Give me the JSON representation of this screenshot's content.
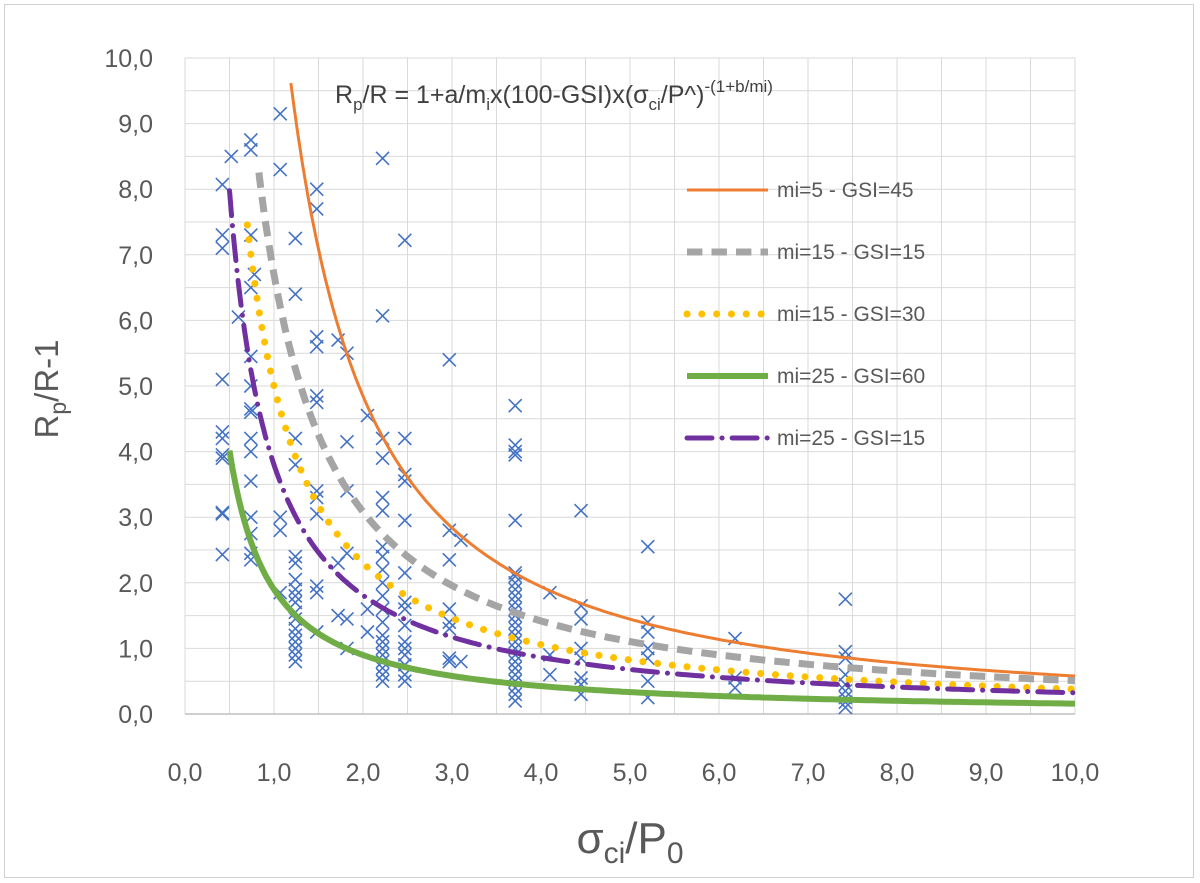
{
  "chart_data": {
    "type": "scatter",
    "xlim": [
      0,
      10
    ],
    "ylim": [
      0,
      10
    ],
    "x_ticks": [
      "0,0",
      "1,0",
      "2,0",
      "3,0",
      "4,0",
      "5,0",
      "6,0",
      "7,0",
      "8,0",
      "9,0",
      "10,0"
    ],
    "y_ticks": [
      "0,0",
      "1,0",
      "2,0",
      "3,0",
      "4,0",
      "5,0",
      "6,0",
      "7,0",
      "8,0",
      "9,0",
      "10,0"
    ],
    "grid": true,
    "legend_position": "right-upper-inside",
    "formula": {
      "a": "R",
      "a_sub": "p",
      "b": "/R = 1+a/m",
      "b_sub": "i",
      "c": "x(100-GSI)x(σ",
      "c_sub": "ci",
      "d": "/P^)",
      "sup": "-(1+b/mi)"
    },
    "ylabel": {
      "a": "R",
      "sub": "p",
      "b": "/R-1"
    },
    "xlabel": {
      "a": "σ",
      "sub1": "ci",
      "b": "/P",
      "sub2": "0"
    },
    "scatter": {
      "marker": "x",
      "color": "#4472C4",
      "points": [
        [
          0.42,
          8.07
        ],
        [
          0.42,
          7.3
        ],
        [
          0.42,
          7.1
        ],
        [
          0.42,
          5.1
        ],
        [
          0.42,
          4.3
        ],
        [
          0.42,
          4.2
        ],
        [
          0.42,
          3.95
        ],
        [
          0.42,
          3.9
        ],
        [
          0.42,
          3.07
        ],
        [
          0.42,
          3.05
        ],
        [
          0.42,
          2.43
        ],
        [
          0.52,
          8.5
        ],
        [
          0.6,
          6.05
        ],
        [
          0.74,
          8.75
        ],
        [
          0.74,
          8.6
        ],
        [
          0.74,
          7.3
        ],
        [
          0.74,
          6.5
        ],
        [
          0.74,
          5.45
        ],
        [
          0.74,
          5.0
        ],
        [
          0.74,
          4.65
        ],
        [
          0.74,
          4.6
        ],
        [
          0.74,
          4.2
        ],
        [
          0.74,
          4.0
        ],
        [
          0.74,
          3.55
        ],
        [
          0.74,
          3.0
        ],
        [
          0.74,
          2.75
        ],
        [
          0.74,
          2.45
        ],
        [
          0.74,
          2.35
        ],
        [
          0.78,
          6.7
        ],
        [
          1.07,
          9.15
        ],
        [
          1.07,
          8.3
        ],
        [
          1.07,
          3.0
        ],
        [
          1.07,
          2.8
        ],
        [
          1.07,
          1.85
        ],
        [
          1.24,
          7.25
        ],
        [
          1.24,
          6.4
        ],
        [
          1.24,
          4.2
        ],
        [
          1.24,
          3.8
        ],
        [
          1.24,
          2.4
        ],
        [
          1.24,
          2.3
        ],
        [
          1.24,
          2.05
        ],
        [
          1.24,
          1.9
        ],
        [
          1.24,
          1.8
        ],
        [
          1.24,
          1.7
        ],
        [
          1.24,
          1.55
        ],
        [
          1.24,
          1.45
        ],
        [
          1.24,
          1.3
        ],
        [
          1.24,
          1.2
        ],
        [
          1.24,
          1.1
        ],
        [
          1.24,
          1.0
        ],
        [
          1.24,
          0.9
        ],
        [
          1.24,
          0.8
        ],
        [
          1.48,
          8.0
        ],
        [
          1.48,
          7.7
        ],
        [
          1.48,
          5.75
        ],
        [
          1.48,
          5.6
        ],
        [
          1.48,
          4.85
        ],
        [
          1.48,
          4.75
        ],
        [
          1.48,
          3.4
        ],
        [
          1.48,
          3.3
        ],
        [
          1.48,
          3.05
        ],
        [
          1.48,
          1.95
        ],
        [
          1.48,
          1.85
        ],
        [
          1.48,
          1.25
        ],
        [
          1.72,
          5.7
        ],
        [
          1.72,
          2.3
        ],
        [
          1.72,
          1.5
        ],
        [
          1.82,
          5.5
        ],
        [
          1.82,
          4.15
        ],
        [
          1.82,
          3.4
        ],
        [
          1.82,
          2.45
        ],
        [
          1.82,
          1.45
        ],
        [
          1.82,
          1.0
        ],
        [
          2.05,
          4.55
        ],
        [
          2.05,
          1.6
        ],
        [
          2.05,
          1.25
        ],
        [
          2.22,
          8.47
        ],
        [
          2.22,
          6.07
        ],
        [
          2.22,
          4.2
        ],
        [
          2.22,
          3.9
        ],
        [
          2.22,
          3.3
        ],
        [
          2.22,
          3.1
        ],
        [
          2.22,
          2.55
        ],
        [
          2.22,
          2.4
        ],
        [
          2.22,
          2.2
        ],
        [
          2.22,
          2.0
        ],
        [
          2.22,
          1.8
        ],
        [
          2.22,
          1.6
        ],
        [
          2.22,
          1.4
        ],
        [
          2.22,
          1.2
        ],
        [
          2.22,
          1.1
        ],
        [
          2.22,
          1.0
        ],
        [
          2.22,
          0.9
        ],
        [
          2.22,
          0.8
        ],
        [
          2.22,
          0.7
        ],
        [
          2.22,
          0.6
        ],
        [
          2.22,
          0.5
        ],
        [
          2.47,
          7.22
        ],
        [
          2.47,
          4.2
        ],
        [
          2.47,
          3.65
        ],
        [
          2.47,
          3.55
        ],
        [
          2.47,
          2.95
        ],
        [
          2.47,
          2.15
        ],
        [
          2.47,
          1.7
        ],
        [
          2.47,
          1.6
        ],
        [
          2.47,
          1.35
        ],
        [
          2.47,
          1.1
        ],
        [
          2.47,
          1.0
        ],
        [
          2.47,
          0.9
        ],
        [
          2.47,
          0.75
        ],
        [
          2.47,
          0.6
        ],
        [
          2.47,
          0.5
        ],
        [
          2.97,
          5.4
        ],
        [
          2.97,
          2.8
        ],
        [
          2.97,
          2.35
        ],
        [
          2.97,
          1.6
        ],
        [
          2.97,
          1.4
        ],
        [
          2.97,
          1.3
        ],
        [
          2.97,
          0.85
        ],
        [
          2.97,
          0.8
        ],
        [
          3.1,
          2.65
        ],
        [
          3.1,
          0.8
        ],
        [
          3.71,
          4.7
        ],
        [
          3.71,
          4.1
        ],
        [
          3.71,
          4.0
        ],
        [
          3.71,
          3.95
        ],
        [
          3.71,
          2.95
        ],
        [
          3.71,
          2.15
        ],
        [
          3.71,
          2.1
        ],
        [
          3.71,
          2.0
        ],
        [
          3.71,
          1.9
        ],
        [
          3.71,
          1.8
        ],
        [
          3.71,
          1.7
        ],
        [
          3.71,
          1.6
        ],
        [
          3.71,
          1.5
        ],
        [
          3.71,
          1.4
        ],
        [
          3.71,
          1.3
        ],
        [
          3.71,
          1.2
        ],
        [
          3.71,
          1.1
        ],
        [
          3.71,
          1.0
        ],
        [
          3.71,
          0.9
        ],
        [
          3.71,
          0.8
        ],
        [
          3.71,
          0.7
        ],
        [
          3.71,
          0.6
        ],
        [
          3.71,
          0.5
        ],
        [
          3.71,
          0.4
        ],
        [
          3.71,
          0.3
        ],
        [
          3.71,
          0.2
        ],
        [
          4.1,
          1.85
        ],
        [
          4.1,
          0.9
        ],
        [
          4.1,
          0.6
        ],
        [
          4.45,
          3.1
        ],
        [
          4.45,
          1.65
        ],
        [
          4.45,
          1.45
        ],
        [
          4.45,
          1.0
        ],
        [
          4.45,
          0.85
        ],
        [
          4.45,
          0.55
        ],
        [
          4.45,
          0.45
        ],
        [
          4.45,
          0.3
        ],
        [
          5.2,
          2.55
        ],
        [
          5.2,
          1.4
        ],
        [
          5.2,
          1.25
        ],
        [
          5.2,
          1.0
        ],
        [
          5.2,
          0.85
        ],
        [
          5.2,
          0.5
        ],
        [
          5.2,
          0.25
        ],
        [
          6.18,
          1.15
        ],
        [
          6.18,
          0.55
        ],
        [
          6.18,
          0.4
        ],
        [
          7.42,
          1.75
        ],
        [
          7.42,
          0.95
        ],
        [
          7.42,
          0.85
        ],
        [
          7.42,
          0.6
        ],
        [
          7.42,
          0.45
        ],
        [
          7.42,
          0.35
        ],
        [
          7.42,
          0.25
        ],
        [
          7.42,
          0.18
        ],
        [
          7.42,
          0.1
        ]
      ]
    },
    "series": [
      {
        "name": "mi=5 - GSI=45",
        "color": "#ED7D31",
        "style": "solid",
        "width": 3,
        "x0": 1.19,
        "A": 12.1,
        "p": 1.32
      },
      {
        "name": "mi=15 - GSI=15",
        "color": "#A5A5A5",
        "style": "dash",
        "width": 7,
        "x0": 0.83,
        "A": 6.7,
        "p": 1.12
      },
      {
        "name": "mi=15 - GSI=30",
        "color": "#FFC000",
        "style": "dot",
        "width": 7,
        "x0": 0.7,
        "A": 5.0,
        "p": 1.12
      },
      {
        "name": "mi=25 - GSI=60",
        "color": "#70AD47",
        "style": "solid",
        "width": 6,
        "x0": 0.5,
        "A": 1.9,
        "p": 1.08
      },
      {
        "name": "mi=25 - GSI=15",
        "color": "#7030A0",
        "style": "dashdot",
        "width": 5,
        "x0": 0.5,
        "A": 3.8,
        "p": 1.07
      }
    ]
  }
}
